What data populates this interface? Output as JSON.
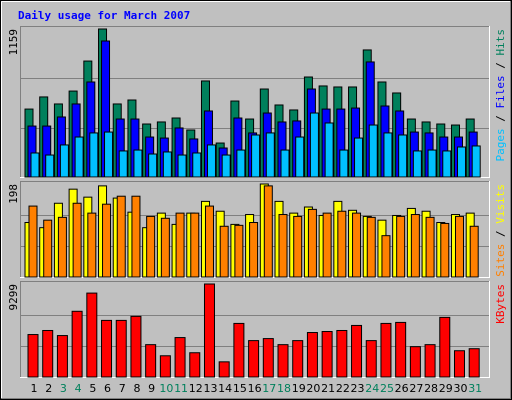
{
  "chart_data": [
    {
      "type": "bar",
      "title": "Daily usage for March 2007",
      "title_color": "#0000ff",
      "ylim": [
        0,
        1159
      ],
      "yticks": [
        1159
      ],
      "grid_divisions": 3,
      "legend_separator": " / ",
      "series": [
        {
          "name": "Hits",
          "color": "#00805c",
          "values": [
            532,
            627,
            572,
            673,
            908,
            1159,
            572,
            603,
            415,
            431,
            462,
            368,
            752,
            266,
            595,
            454,
            689,
            564,
            525,
            783,
            713,
            705,
            705,
            995,
            744,
            658,
            454,
            431,
            415,
            407,
            454
          ]
        },
        {
          "name": "Files",
          "color": "#0000ff",
          "values": [
            399,
            399,
            470,
            572,
            744,
            1065,
            454,
            454,
            313,
            305,
            384,
            298,
            517,
            227,
            462,
            345,
            501,
            431,
            439,
            689,
            532,
            532,
            540,
            901,
            556,
            517,
            352,
            345,
            313,
            313,
            352
          ]
        },
        {
          "name": "Pages",
          "color": "#00c0ff",
          "values": [
            188,
            172,
            251,
            313,
            345,
            352,
            204,
            211,
            180,
            196,
            172,
            188,
            251,
            172,
            211,
            329,
            345,
            211,
            313,
            501,
            423,
            211,
            305,
            407,
            345,
            329,
            204,
            211,
            204,
            235,
            243
          ]
        }
      ]
    },
    {
      "type": "bar",
      "ylim": [
        0,
        198
      ],
      "yticks": [
        198
      ],
      "grid_divisions": 3,
      "legend_separator": " / ",
      "series": [
        {
          "name": "Visits",
          "color": "#ffff00",
          "values": [
            116,
            105,
            157,
            187,
            170,
            194,
            168,
            138,
            105,
            136,
            112,
            136,
            161,
            140,
            112,
            133,
            198,
            161,
            136,
            149,
            131,
            161,
            142,
            129,
            121,
            131,
            146,
            140,
            116,
            133,
            136
          ]
        },
        {
          "name": "Sites",
          "color": "#ff8000",
          "values": [
            151,
            121,
            127,
            157,
            136,
            155,
            172,
            172,
            129,
            125,
            136,
            136,
            151,
            108,
            110,
            116,
            194,
            133,
            129,
            144,
            136,
            140,
            136,
            127,
            88,
            129,
            133,
            127,
            114,
            129,
            108
          ]
        }
      ]
    },
    {
      "type": "bar",
      "ylim": [
        0,
        9299
      ],
      "yticks": [
        9299
      ],
      "grid_divisions": 3,
      "series": [
        {
          "name": "KBytes",
          "color": "#ff0000",
          "values": [
            4245,
            4650,
            4144,
            6570,
            8390,
            5660,
            5660,
            6065,
            3235,
            2123,
            3942,
            2426,
            9299,
            1516,
            5357,
            3639,
            3841,
            3235,
            3639,
            4447,
            4548,
            4650,
            5155,
            3639,
            5357,
            5458,
            3032,
            3235,
            5963,
            2628,
            2830
          ]
        }
      ],
      "categories": [
        "1",
        "2",
        "3",
        "4",
        "5",
        "6",
        "7",
        "8",
        "9",
        "10",
        "11",
        "12",
        "13",
        "14",
        "15",
        "16",
        "17",
        "18",
        "19",
        "20",
        "21",
        "22",
        "23",
        "24",
        "25",
        "26",
        "27",
        "28",
        "29",
        "30",
        "31"
      ],
      "category_colors": [
        "#000000",
        "#000000",
        "#00805c",
        "#00805c",
        "#000000",
        "#000000",
        "#000000",
        "#000000",
        "#000000",
        "#00805c",
        "#00805c",
        "#000000",
        "#000000",
        "#000000",
        "#000000",
        "#000000",
        "#00805c",
        "#00805c",
        "#000000",
        "#000000",
        "#000000",
        "#000000",
        "#000000",
        "#00805c",
        "#00805c",
        "#000000",
        "#000000",
        "#000000",
        "#000000",
        "#000000",
        "#00805c"
      ]
    }
  ]
}
